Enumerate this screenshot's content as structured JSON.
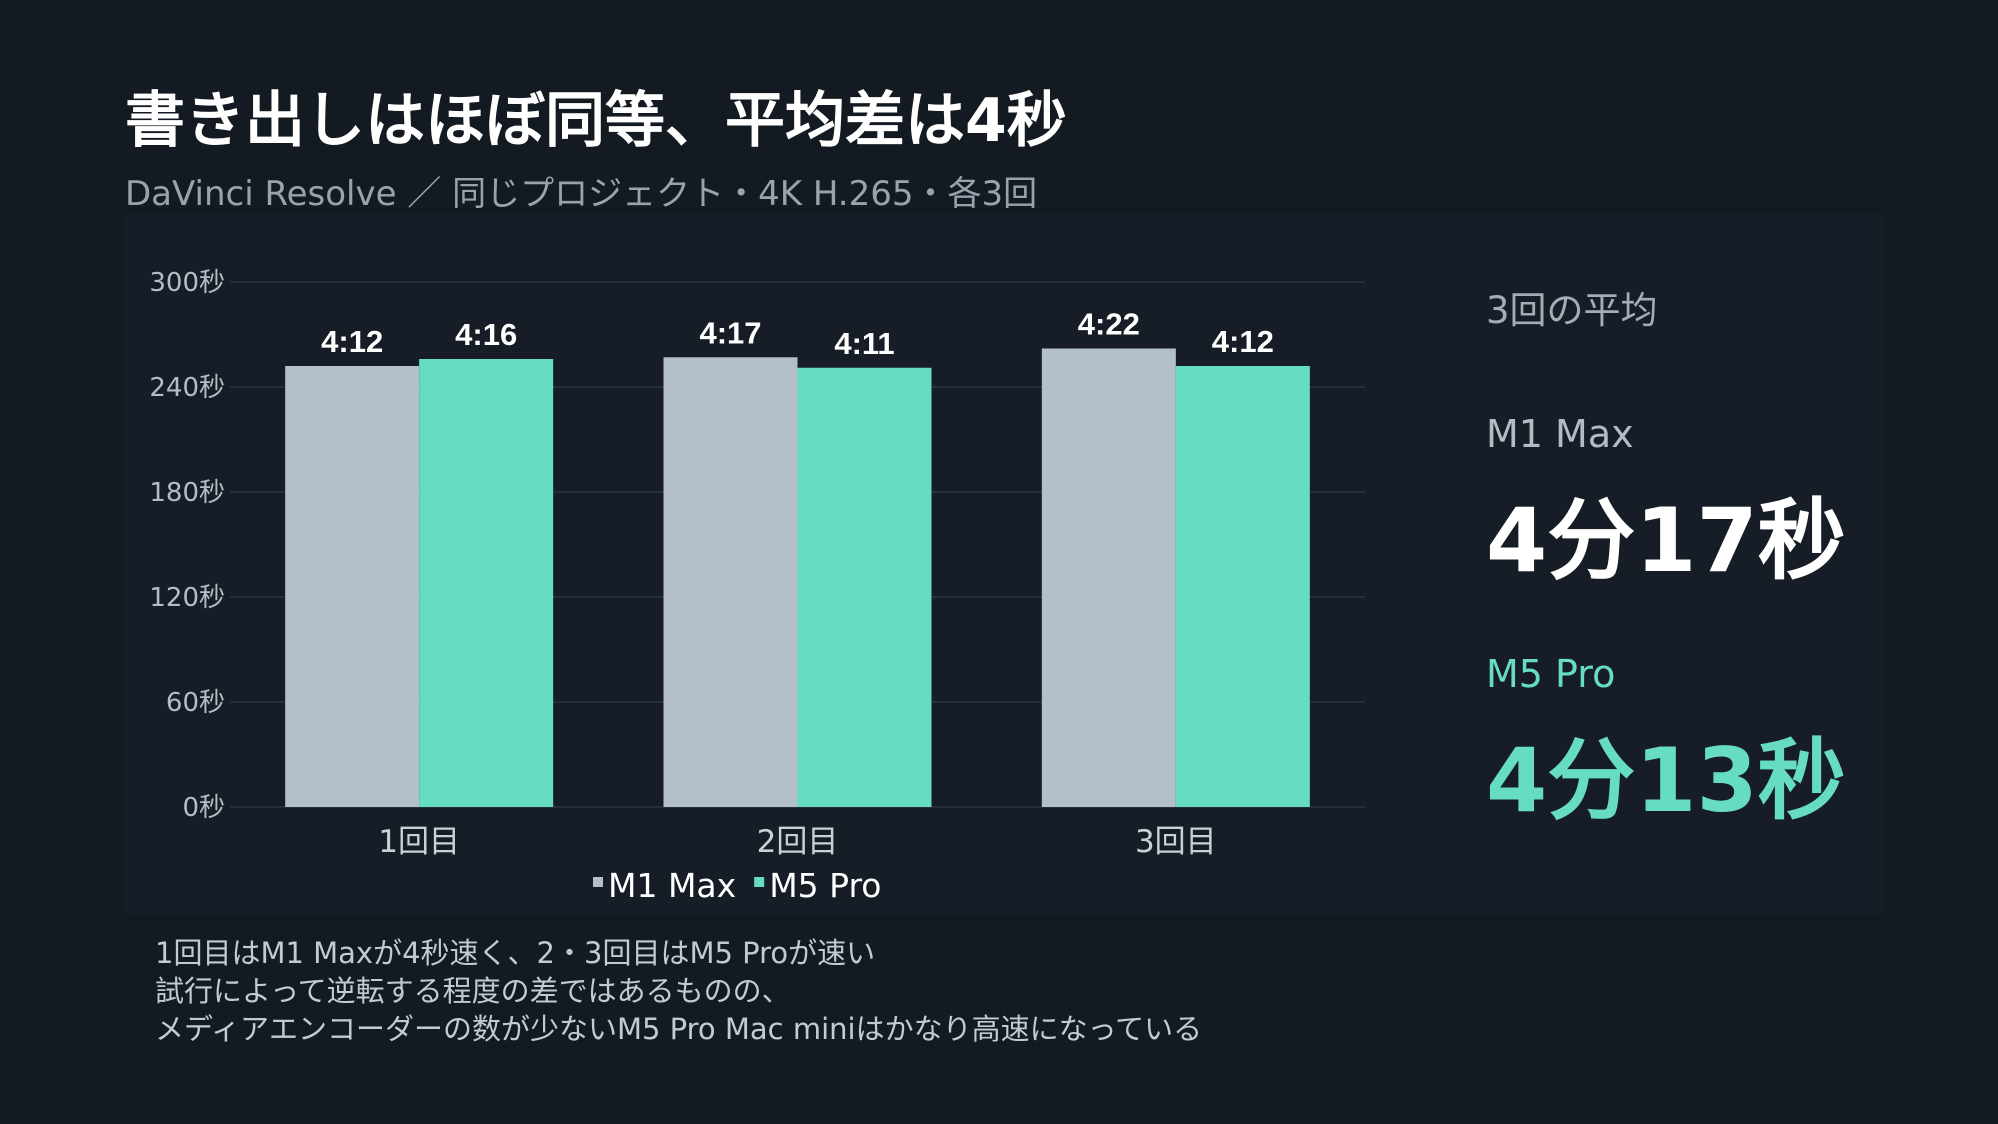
{
  "header": {
    "title": "書き出しはほぼ同等、平均差は4秒",
    "subtitle": "DaVinci Resolve ／ 同じプロジェクト・4K H.265・各3回"
  },
  "chart_data": {
    "type": "bar",
    "categories": [
      "1回目",
      "2回目",
      "3回目"
    ],
    "series": [
      {
        "name": "M1 Max",
        "color": "#b3bfcb",
        "values": [
          252,
          257,
          262
        ],
        "labels": [
          "4:12",
          "4:17",
          "4:22"
        ]
      },
      {
        "name": "M5 Pro",
        "color": "#66ddc3",
        "values": [
          256,
          251,
          252
        ],
        "labels": [
          "4:16",
          "4:11",
          "4:12"
        ]
      }
    ],
    "y_ticks": [
      0,
      60,
      120,
      180,
      240,
      300
    ],
    "y_tick_labels": [
      "0秒",
      "60秒",
      "120秒",
      "180秒",
      "240秒",
      "300秒"
    ],
    "ylim": [
      0,
      300
    ],
    "grid": true,
    "legend_position": "bottom"
  },
  "summary": {
    "heading": "3回の平均",
    "items": [
      {
        "name": "M1 Max",
        "value": "4分17秒",
        "color": "#ffffff",
        "name_color": "#b3bcc5"
      },
      {
        "name": "M5 Pro",
        "value": "4分13秒",
        "color": "#66ddc3",
        "name_color": "#66ddc3"
      }
    ]
  },
  "notes": [
    "1回目はM1 Maxが4秒速く、2・3回目はM5 Proが速い",
    "試行によって逆転する程度の差ではあるものの、",
    "メディアエンコーダーの数が少ないM5 Pro Mac miniはかなり高速になっている"
  ]
}
